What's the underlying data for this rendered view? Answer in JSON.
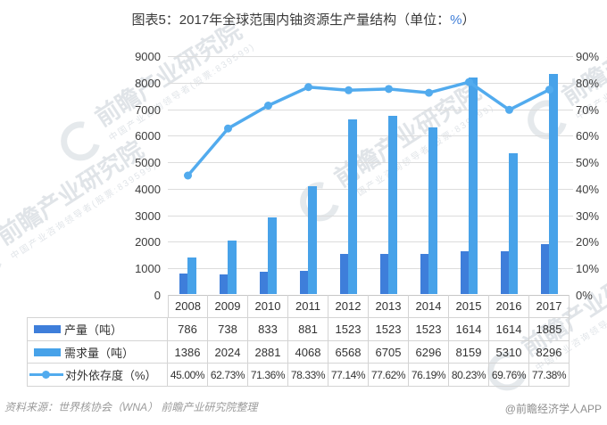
{
  "title": {
    "prefix": "图表5：2017年全球范围内铀资源生产量结构（单位：",
    "unit": "%",
    "suffix": "）"
  },
  "footer": {
    "source": "资料来源：世界核协会（WNA）  前瞻产业研究院整理",
    "credit": "@前瞻经济学人APP"
  },
  "watermark": {
    "text": "前瞻产业研究院",
    "subtext": "中国产业咨询领导者(股票:839599)"
  },
  "colors": {
    "production": "#3e7eda",
    "demand": "#47a2e9",
    "dependency": "#52abee",
    "grid": "#dcdcdc",
    "border": "#d4d4d4",
    "title_unit": "#3f7ed8"
  },
  "chart_data": {
    "type": "bar+line",
    "title": "图表5：2017年全球范围内铀资源生产量结构（单位：%）",
    "categories": [
      "2008",
      "2009",
      "2010",
      "2011",
      "2012",
      "2013",
      "2014",
      "2015",
      "2016",
      "2017"
    ],
    "series": [
      {
        "name": "产量（吨）",
        "type": "bar",
        "axis": "left",
        "values": [
          786,
          738,
          833,
          881,
          1523,
          1523,
          1523,
          1614,
          1614,
          1885
        ]
      },
      {
        "name": "需求量（吨）",
        "type": "bar",
        "axis": "left",
        "values": [
          1386,
          2024,
          2881,
          4068,
          6568,
          6705,
          6296,
          8159,
          5310,
          8296
        ]
      },
      {
        "name": "对外依存度（%）",
        "type": "line",
        "axis": "right",
        "values": [
          45.0,
          62.73,
          71.36,
          78.33,
          77.14,
          77.62,
          76.19,
          80.23,
          69.76,
          77.38
        ],
        "labels": [
          "45.00%",
          "62.73%",
          "71.36%",
          "78.33%",
          "77.14%",
          "77.62%",
          "76.19%",
          "80.23%",
          "69.76%",
          "77.38%"
        ]
      }
    ],
    "left_axis": {
      "min": 0,
      "max": 9000,
      "step": 1000,
      "ticks": [
        "9000",
        "8000",
        "7000",
        "6000",
        "5000",
        "4000",
        "3000",
        "2000",
        "1000",
        "0"
      ]
    },
    "right_axis": {
      "min": 0,
      "max": 90,
      "step": 10,
      "ticks": [
        "90%",
        "80%",
        "70%",
        "60%",
        "50%",
        "40%",
        "30%",
        "20%",
        "10%",
        "0%"
      ]
    },
    "grid": true,
    "legend_position": "table-left"
  }
}
